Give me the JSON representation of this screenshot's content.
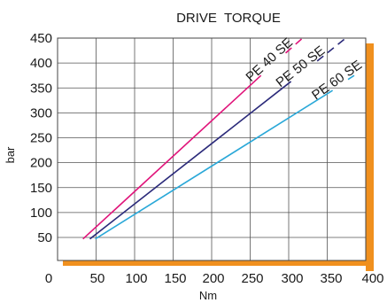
{
  "chart_data": {
    "type": "line",
    "title": "DRIVE  TORQUE",
    "xlabel": "Nm",
    "ylabel": "bar",
    "xlim": [
      0,
      400
    ],
    "ylim": [
      25,
      450
    ],
    "x_ticks": [
      "0",
      "50",
      "100",
      "150",
      "200",
      "250",
      "300",
      "350",
      "400"
    ],
    "y_ticks": [
      "50",
      "100",
      "150",
      "200",
      "250",
      "300",
      "350",
      "400",
      "450"
    ],
    "grid": true,
    "series": [
      {
        "name": "PE 40 SE",
        "color": "#e0147a",
        "solid": [
          [
            33,
            47
          ],
          [
            264,
            375
          ]
        ],
        "dashed": [
          [
            296,
            420
          ],
          [
            318,
            450
          ]
        ]
      },
      {
        "name": "PE 50 SE",
        "color": "#2b2a7a",
        "solid": [
          [
            42,
            47
          ],
          [
            303,
            363
          ]
        ],
        "dashed": [
          [
            337,
            404
          ],
          [
            374,
            450
          ]
        ]
      },
      {
        "name": "PE 60 SE",
        "color": "#2aa8d8",
        "solid": [
          [
            49,
            47
          ],
          [
            357,
            345
          ]
        ],
        "dashed": [
          [
            377,
            367
          ],
          [
            385,
            375
          ]
        ]
      }
    ],
    "frame_shadow_color": "#f0901e"
  }
}
